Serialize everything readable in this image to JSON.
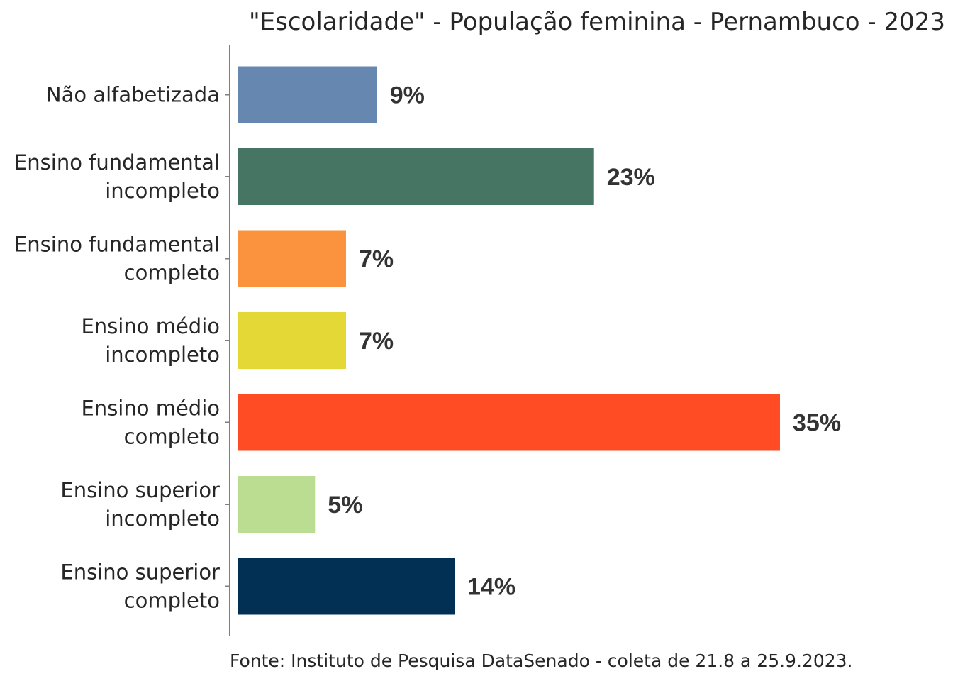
{
  "chart_data": {
    "type": "bar",
    "orientation": "horizontal",
    "title": "\"Escolaridade\" - População feminina - Pernambuco - 2023",
    "categories": [
      [
        "Não alfabetizada"
      ],
      [
        "Ensino fundamental",
        "incompleto"
      ],
      [
        "Ensino fundamental",
        "completo"
      ],
      [
        "Ensino médio",
        "incompleto"
      ],
      [
        "Ensino médio",
        "completo"
      ],
      [
        "Ensino superior",
        "incompleto"
      ],
      [
        "Ensino superior",
        "completo"
      ]
    ],
    "values": [
      9,
      23,
      7,
      7,
      35,
      5,
      14
    ],
    "value_labels": [
      "9%",
      "23%",
      "7%",
      "7%",
      "35%",
      "5%",
      "14%"
    ],
    "colors": [
      "#6688b0",
      "#467563",
      "#fa923e",
      "#e3d836",
      "#ff4c24",
      "#badd91",
      "#013054"
    ],
    "xlim": [
      0,
      35
    ],
    "xlabel": "",
    "ylabel": "",
    "source": "Fonte: Instituto de Pesquisa DataSenado - coleta de 21.8 a 25.9.2023."
  }
}
